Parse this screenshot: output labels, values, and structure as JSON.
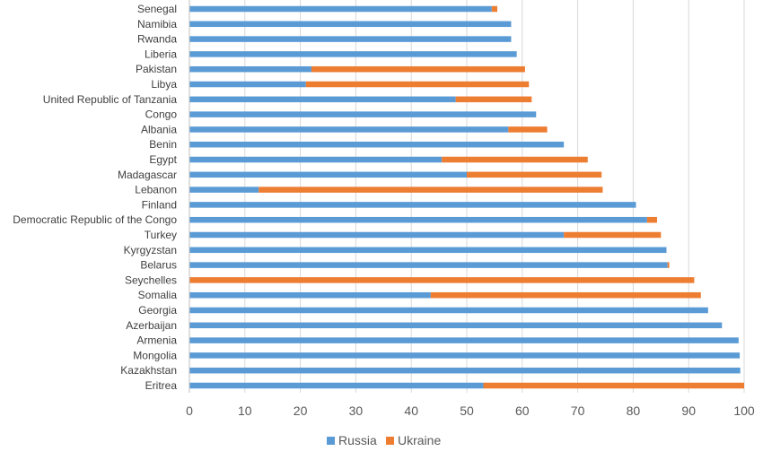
{
  "chart_data": {
    "type": "bar",
    "orientation": "horizontal",
    "stacked": true,
    "categories": [
      "Senegal",
      "Namibia",
      "Rwanda",
      "Liberia",
      "Pakistan",
      "Libya",
      "United Republic of Tanzania",
      "Congo",
      "Albania",
      "Benin",
      "Egypt",
      "Madagascar",
      "Lebanon",
      "Finland",
      "Democratic Republic of the Congo",
      "Turkey",
      "Kyrgyzstan",
      "Belarus",
      "Seychelles",
      "Somalia",
      "Georgia",
      "Azerbaijan",
      "Armenia",
      "Mongolia",
      "Kazakhstan",
      "Eritrea"
    ],
    "series": [
      {
        "name": "Russia",
        "color": "#5b9bd5",
        "values": [
          54.5,
          58,
          58,
          59,
          22,
          21,
          48,
          62.5,
          57.5,
          67.5,
          45.5,
          50,
          12.5,
          80.5,
          82.5,
          67.5,
          86,
          86.2,
          0,
          43.5,
          93.5,
          96,
          99,
          99.2,
          99.3,
          53
        ]
      },
      {
        "name": "Ukraine",
        "color": "#ed7d31",
        "values": [
          1,
          0,
          0,
          0,
          38.5,
          40.2,
          13.7,
          0,
          7,
          0,
          26.3,
          24.3,
          62,
          0,
          1.8,
          17.5,
          0,
          0.3,
          91,
          48.7,
          0,
          0,
          0,
          0,
          0,
          47
        ]
      }
    ],
    "xlim": [
      0,
      100
    ],
    "xticks": [
      "0",
      "10",
      "20",
      "30",
      "40",
      "50",
      "60",
      "70",
      "80",
      "90",
      "100"
    ],
    "grid": true,
    "legend_position": "bottom"
  }
}
